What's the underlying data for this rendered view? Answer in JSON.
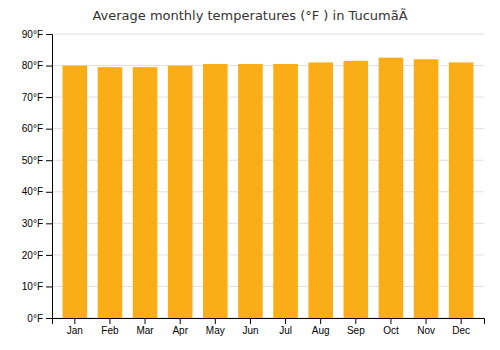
{
  "chart_data": {
    "type": "bar",
    "title": "Average monthly temperatures (°F ) in TucumãÃ",
    "categories": [
      "Jan",
      "Feb",
      "Mar",
      "Apr",
      "May",
      "Jun",
      "Jul",
      "Aug",
      "Sep",
      "Oct",
      "Nov",
      "Dec"
    ],
    "values": [
      80.0,
      79.5,
      79.5,
      80.0,
      80.5,
      80.5,
      80.5,
      81.0,
      81.5,
      82.5,
      82.0,
      81.0
    ],
    "color": "#FBAD18",
    "ylim": [
      0,
      90
    ],
    "yticks": [
      {
        "value": 0,
        "label": "0°F"
      },
      {
        "value": 10,
        "label": "10°F"
      },
      {
        "value": 20,
        "label": "20°F"
      },
      {
        "value": 30,
        "label": "30°F"
      },
      {
        "value": 40,
        "label": "40°F"
      },
      {
        "value": 50,
        "label": "50°F"
      },
      {
        "value": 60,
        "label": "60°F"
      },
      {
        "value": 70,
        "label": "70°F"
      },
      {
        "value": 80,
        "label": "80°F"
      },
      {
        "value": 90,
        "label": "90°F"
      }
    ],
    "grid": true
  }
}
